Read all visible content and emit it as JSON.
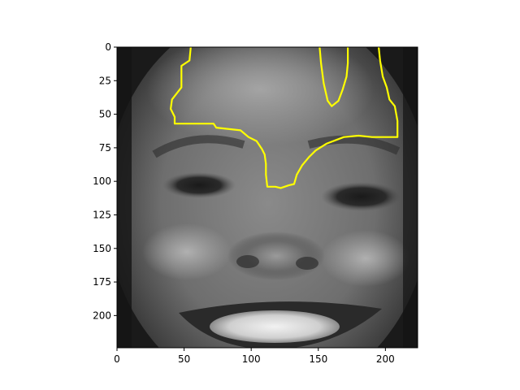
{
  "chart_data": {
    "type": "image",
    "title": "",
    "xlabel": "",
    "ylabel": "",
    "xlim": [
      0,
      224
    ],
    "ylim": [
      224,
      0
    ],
    "x_ticks": [
      0,
      50,
      100,
      150,
      200
    ],
    "y_ticks": [
      0,
      25,
      50,
      75,
      100,
      125,
      150,
      175,
      200
    ],
    "image": {
      "content": "grayscale close-up photo of a smiling face",
      "colormap": "gray"
    },
    "overlays": [
      {
        "kind": "contour",
        "color": "#ffff00",
        "paths": [
          [
            [
              55,
              0
            ],
            [
              54,
              10
            ],
            [
              48,
              14
            ],
            [
              48,
              30
            ],
            [
              41,
              39
            ],
            [
              40,
              46
            ],
            [
              43,
              52
            ],
            [
              43,
              57
            ],
            [
              72,
              57
            ],
            [
              74,
              60
            ],
            [
              92,
              62
            ],
            [
              98,
              67
            ],
            [
              104,
              70
            ],
            [
              108,
              76
            ],
            [
              110,
              80
            ],
            [
              111,
              87
            ],
            [
              111,
              95
            ],
            [
              112,
              104
            ],
            [
              118,
              104
            ],
            [
              122,
              105
            ],
            [
              128,
              103
            ],
            [
              132,
              102
            ],
            [
              134,
              95
            ],
            [
              138,
              88
            ],
            [
              143,
              82
            ],
            [
              148,
              77
            ],
            [
              156,
              72
            ],
            [
              169,
              67
            ],
            [
              180,
              66
            ],
            [
              190,
              67
            ],
            [
              209,
              67
            ],
            [
              209,
              55
            ],
            [
              207,
              44
            ],
            [
              203,
              39
            ],
            [
              201,
              30
            ],
            [
              198,
              22
            ],
            [
              196,
              10
            ],
            [
              195,
              0
            ]
          ],
          [
            [
              151,
              0
            ],
            [
              152,
              12
            ],
            [
              154,
              27
            ],
            [
              157,
              40
            ],
            [
              160,
              44
            ],
            [
              165,
              40
            ],
            [
              168,
              32
            ],
            [
              171,
              22
            ],
            [
              172,
              12
            ],
            [
              172,
              0
            ]
          ]
        ]
      }
    ]
  }
}
